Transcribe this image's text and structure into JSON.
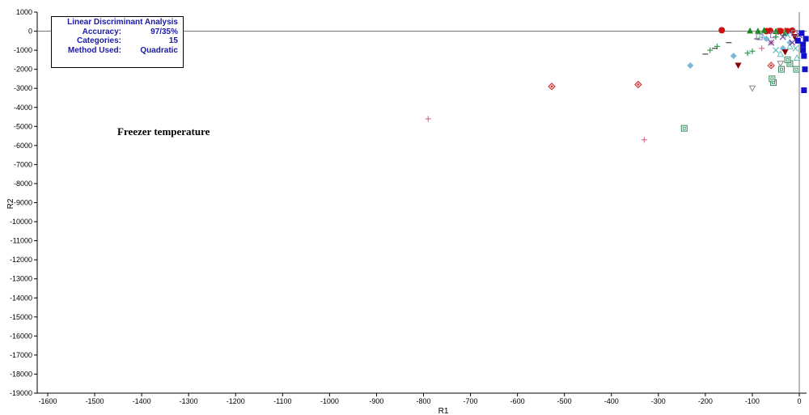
{
  "chart_data": {
    "type": "scatter",
    "title": "",
    "xlabel": "R1",
    "ylabel": "R2",
    "xlim": [
      -1600,
      20
    ],
    "ylim": [
      -19000,
      1000
    ],
    "x_ticks": [
      -1600,
      -1500,
      -1400,
      -1300,
      -1200,
      -1100,
      -1000,
      -900,
      -800,
      -700,
      -600,
      -500,
      -400,
      -300,
      -200,
      -100,
      0
    ],
    "y_ticks": [
      1000,
      0,
      -1000,
      -2000,
      -3000,
      -4000,
      -5000,
      -6000,
      -7000,
      -8000,
      -9000,
      -10000,
      -11000,
      -12000,
      -13000,
      -14000,
      -15000,
      -16000,
      -17000,
      -18000,
      -19000
    ],
    "grid": false,
    "annotation": "Freezer temperature",
    "info_box": {
      "title": "Linear Discriminant Analysis",
      "rows": [
        {
          "key": "Accuracy:",
          "value": "97/35%"
        },
        {
          "key": "Categories:",
          "value": "15"
        },
        {
          "key": "Method Used:",
          "value": "Quadratic"
        }
      ]
    },
    "series": [
      {
        "marker": "diamond-dot",
        "color": "#cc2a2a",
        "points": [
          [
            -527,
            -2900
          ],
          [
            -343,
            -2800
          ],
          [
            -60,
            -1800
          ],
          [
            -45,
            0
          ],
          [
            -30,
            0
          ]
        ]
      },
      {
        "marker": "square-dot",
        "color": "#2e8b57",
        "points": [
          [
            -245,
            -5100
          ],
          [
            -55,
            -2700
          ],
          [
            -58,
            -2500
          ],
          [
            -38,
            -2000
          ],
          [
            -6,
            -2000
          ],
          [
            -20,
            -1700
          ],
          [
            -25,
            -1500
          ]
        ]
      },
      {
        "marker": "plus",
        "color": "#e07090",
        "points": [
          [
            -330,
            -5700
          ],
          [
            -790,
            -4600
          ],
          [
            -80,
            -900
          ],
          [
            -60,
            -600
          ]
        ]
      },
      {
        "marker": "plus",
        "color": "#2e9e4e",
        "points": [
          [
            -190,
            -1000
          ],
          [
            -175,
            -800
          ],
          [
            -110,
            -1150
          ],
          [
            -100,
            -1050
          ],
          [
            -50,
            -300
          ]
        ]
      },
      {
        "marker": "dash",
        "color": "#444444",
        "points": [
          [
            -200,
            -1200
          ],
          [
            -180,
            -900
          ],
          [
            -150,
            -600
          ],
          [
            -90,
            -400
          ]
        ]
      },
      {
        "marker": "diamond",
        "color": "#7ab7d8",
        "points": [
          [
            -232,
            -1800
          ],
          [
            -140,
            -1300
          ],
          [
            -70,
            -400
          ],
          [
            -35,
            -900
          ],
          [
            -20,
            -600
          ]
        ]
      },
      {
        "marker": "triangle-down",
        "color": "#8b0000",
        "points": [
          [
            -130,
            -1800
          ],
          [
            -30,
            -1100
          ],
          [
            -10,
            -300
          ]
        ]
      },
      {
        "marker": "triangle-down-open",
        "color": "#888888",
        "points": [
          [
            -100,
            -3000
          ],
          [
            -40,
            -1700
          ]
        ]
      },
      {
        "marker": "circle",
        "color": "#cc1111",
        "points": [
          [
            -165,
            50
          ],
          [
            -70,
            0
          ],
          [
            -62,
            20
          ],
          [
            -40,
            10
          ],
          [
            -25,
            0
          ],
          [
            -15,
            30
          ]
        ]
      },
      {
        "marker": "triangle",
        "color": "#1e8a1e",
        "points": [
          [
            -105,
            30
          ],
          [
            -88,
            20
          ],
          [
            -75,
            50
          ],
          [
            -50,
            0
          ],
          [
            -30,
            -100
          ]
        ]
      },
      {
        "marker": "triangle-open",
        "color": "#66bbbb",
        "points": [
          [
            -80,
            -200
          ],
          [
            -40,
            -1200
          ],
          [
            -20,
            -800
          ],
          [
            -5,
            -1400
          ]
        ]
      },
      {
        "marker": "x",
        "color": "#7040a0",
        "points": [
          [
            -60,
            -600
          ],
          [
            -35,
            -300
          ],
          [
            -15,
            -600
          ],
          [
            0,
            -200
          ]
        ]
      },
      {
        "marker": "x",
        "color": "#66bbbb",
        "points": [
          [
            -50,
            -1000
          ],
          [
            -25,
            -200
          ],
          [
            -8,
            -900
          ]
        ]
      },
      {
        "marker": "square-open",
        "color": "#9080b8",
        "points": [
          [
            -85,
            -300
          ],
          [
            -55,
            -200
          ],
          [
            -10,
            -100
          ]
        ]
      },
      {
        "marker": "square",
        "color": "#1010cc",
        "points": [
          [
            5,
            -100
          ],
          [
            8,
            -700
          ],
          [
            10,
            -1300
          ],
          [
            12,
            -2000
          ],
          [
            10,
            -3100
          ],
          [
            14,
            -400
          ],
          [
            8,
            -1000
          ],
          [
            -3,
            -500
          ]
        ]
      }
    ]
  }
}
